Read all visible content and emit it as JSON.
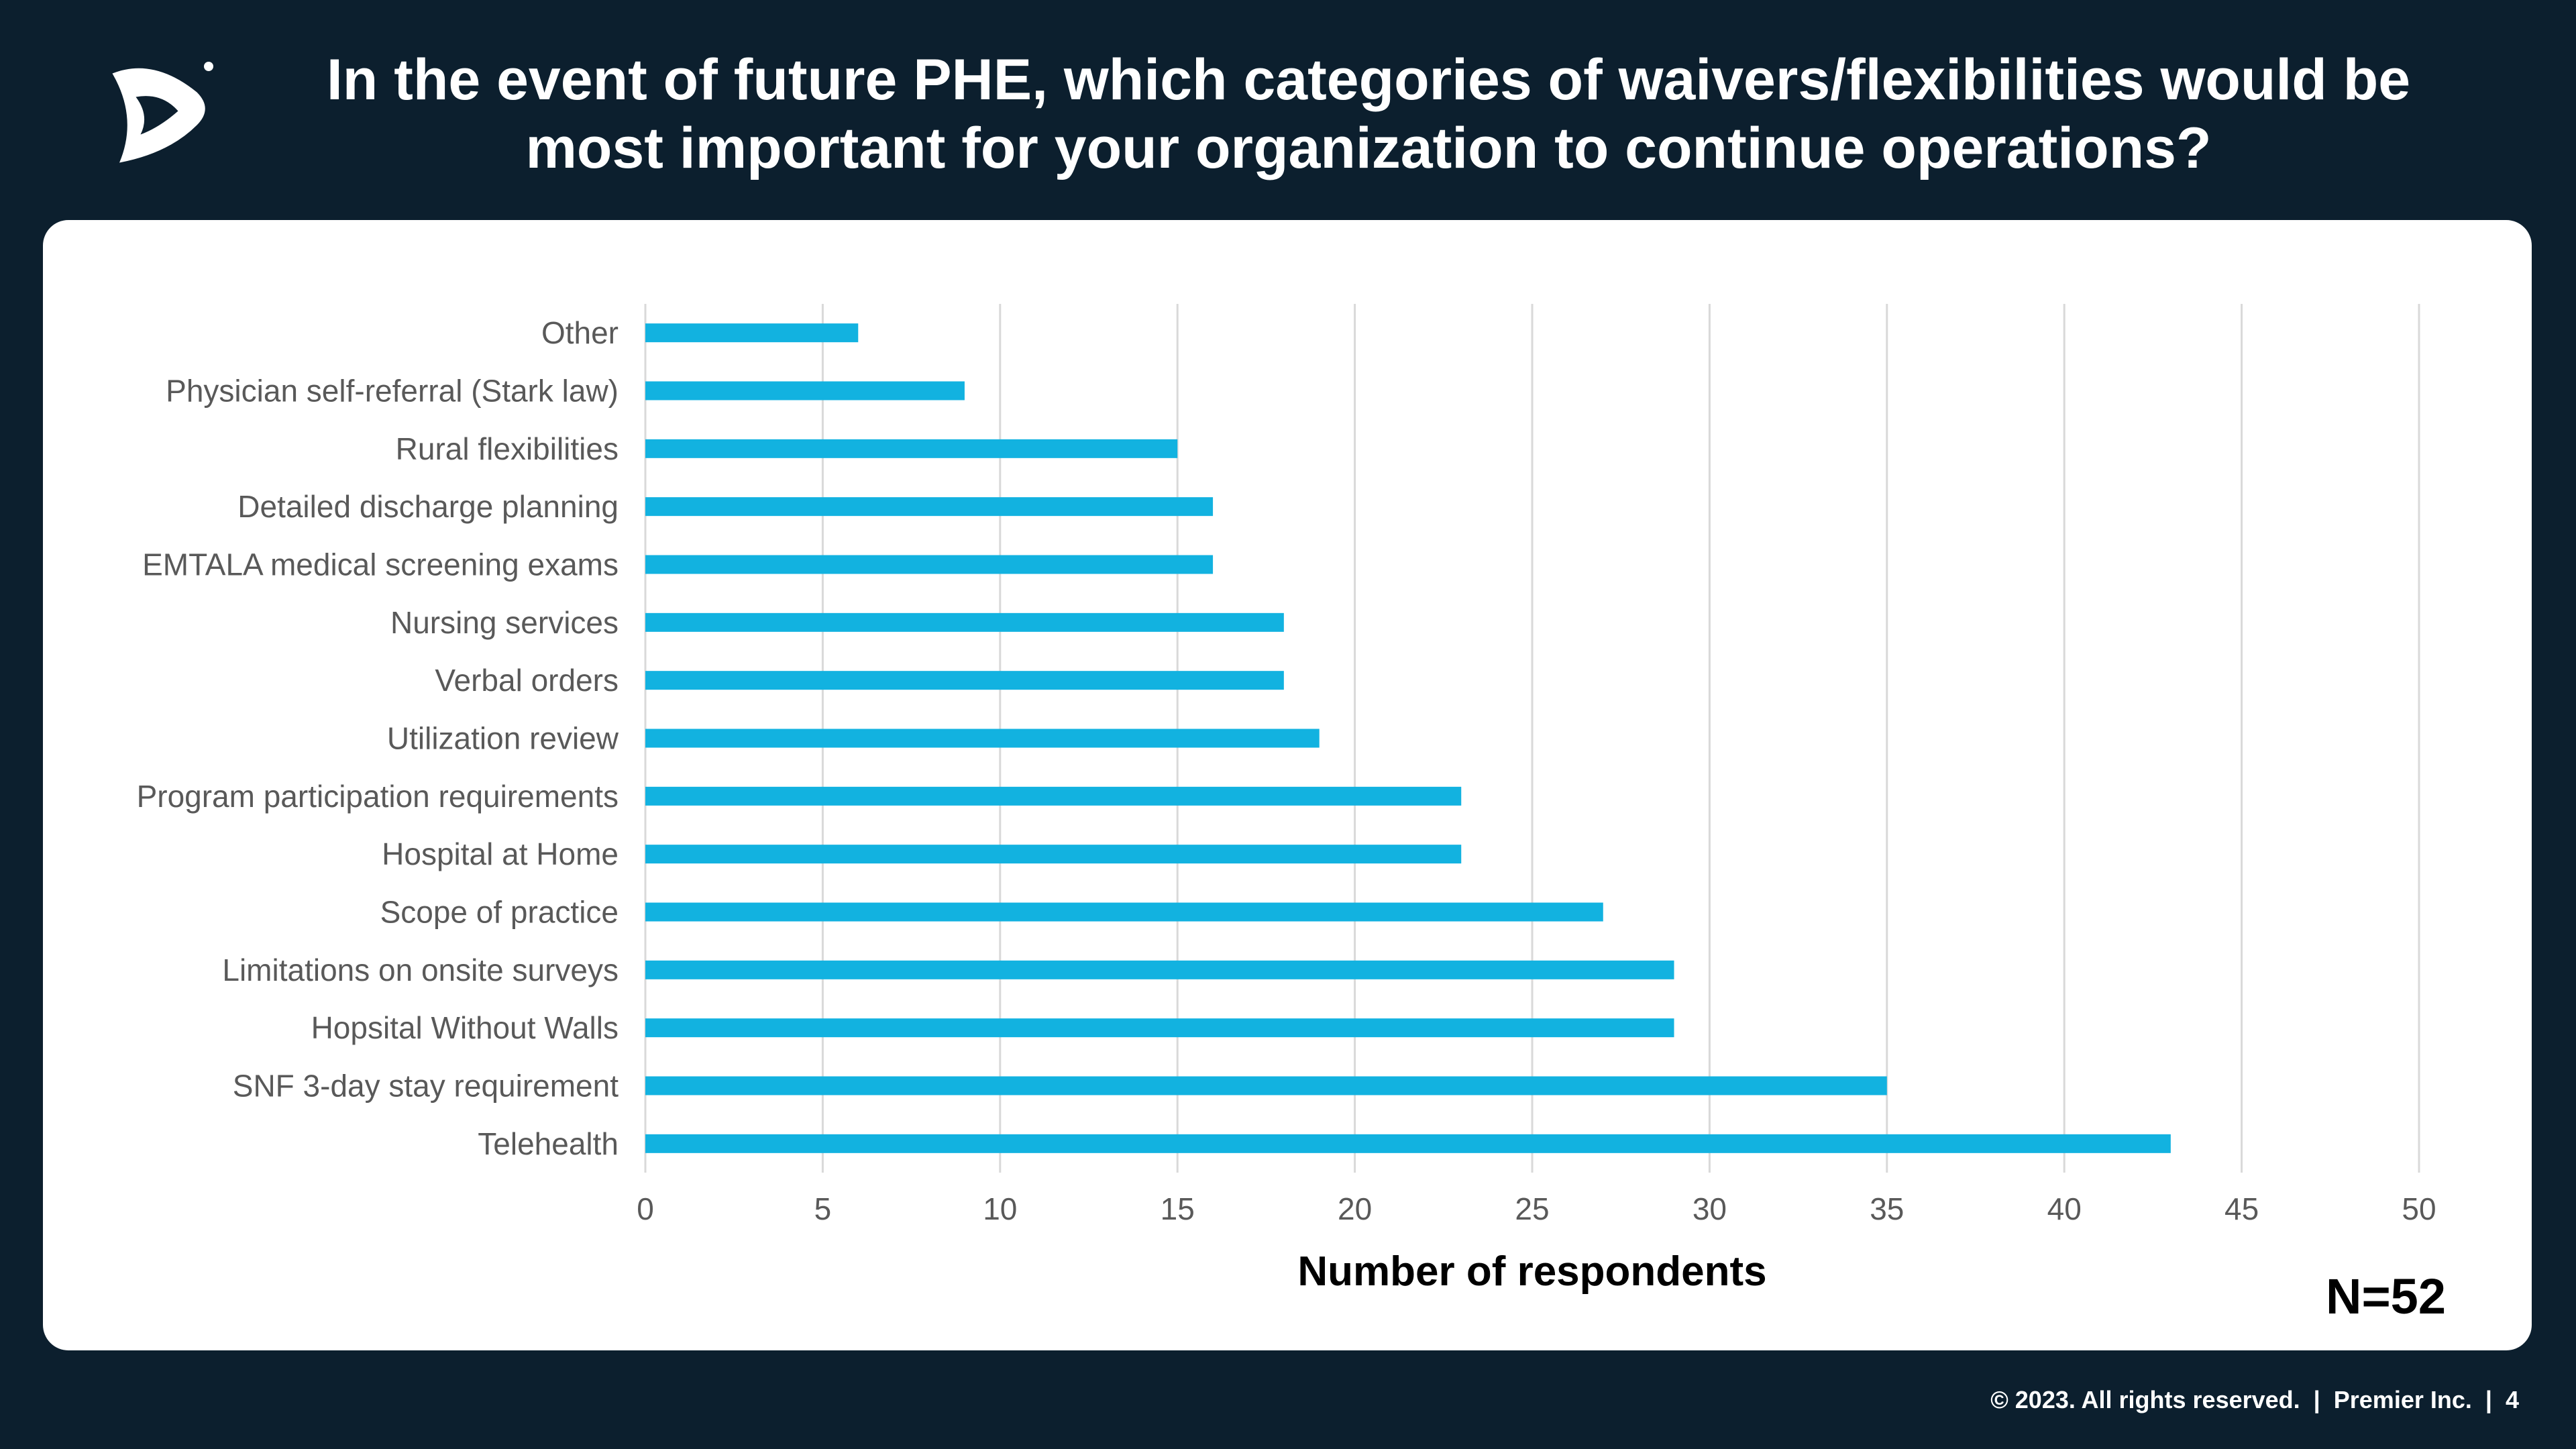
{
  "header": {
    "title_line1": "In the event of future PHE, which categories of waivers/flexibilities would be",
    "title_line2": "most important for your organization to continue operations?"
  },
  "logo": {
    "icon": "premier-logo-icon"
  },
  "chart_data": {
    "type": "bar",
    "orientation": "horizontal",
    "categories": [
      "Other",
      "Physician self-referral (Stark law)",
      "Rural flexibilities",
      "Detailed discharge planning",
      "EMTALA medical screening exams",
      "Nursing services",
      "Verbal orders",
      "Utilization review",
      "Program participation requirements",
      "Hospital at Home",
      "Scope of practice",
      "Limitations on onsite surveys",
      "Hopsital Without Walls",
      "SNF 3-day stay requirement",
      "Telehealth"
    ],
    "values": [
      6,
      9,
      15,
      16,
      16,
      18,
      18,
      19,
      23,
      23,
      27,
      29,
      29,
      35,
      43
    ],
    "xlabel": "Number of respondents",
    "xlim": [
      0,
      50
    ],
    "xticks": [
      0,
      5,
      10,
      15,
      20,
      25,
      30,
      35,
      40,
      45,
      50
    ],
    "grid": "vertical",
    "bar_color": "#12b2e0",
    "annotation": "N=52"
  },
  "footer": {
    "copyright": "© 2023. All rights reserved.",
    "company": "Premier Inc.",
    "page": "4"
  },
  "colors": {
    "background": "#0c1f2e",
    "panel": "#ffffff",
    "bar": "#12b2e0"
  }
}
